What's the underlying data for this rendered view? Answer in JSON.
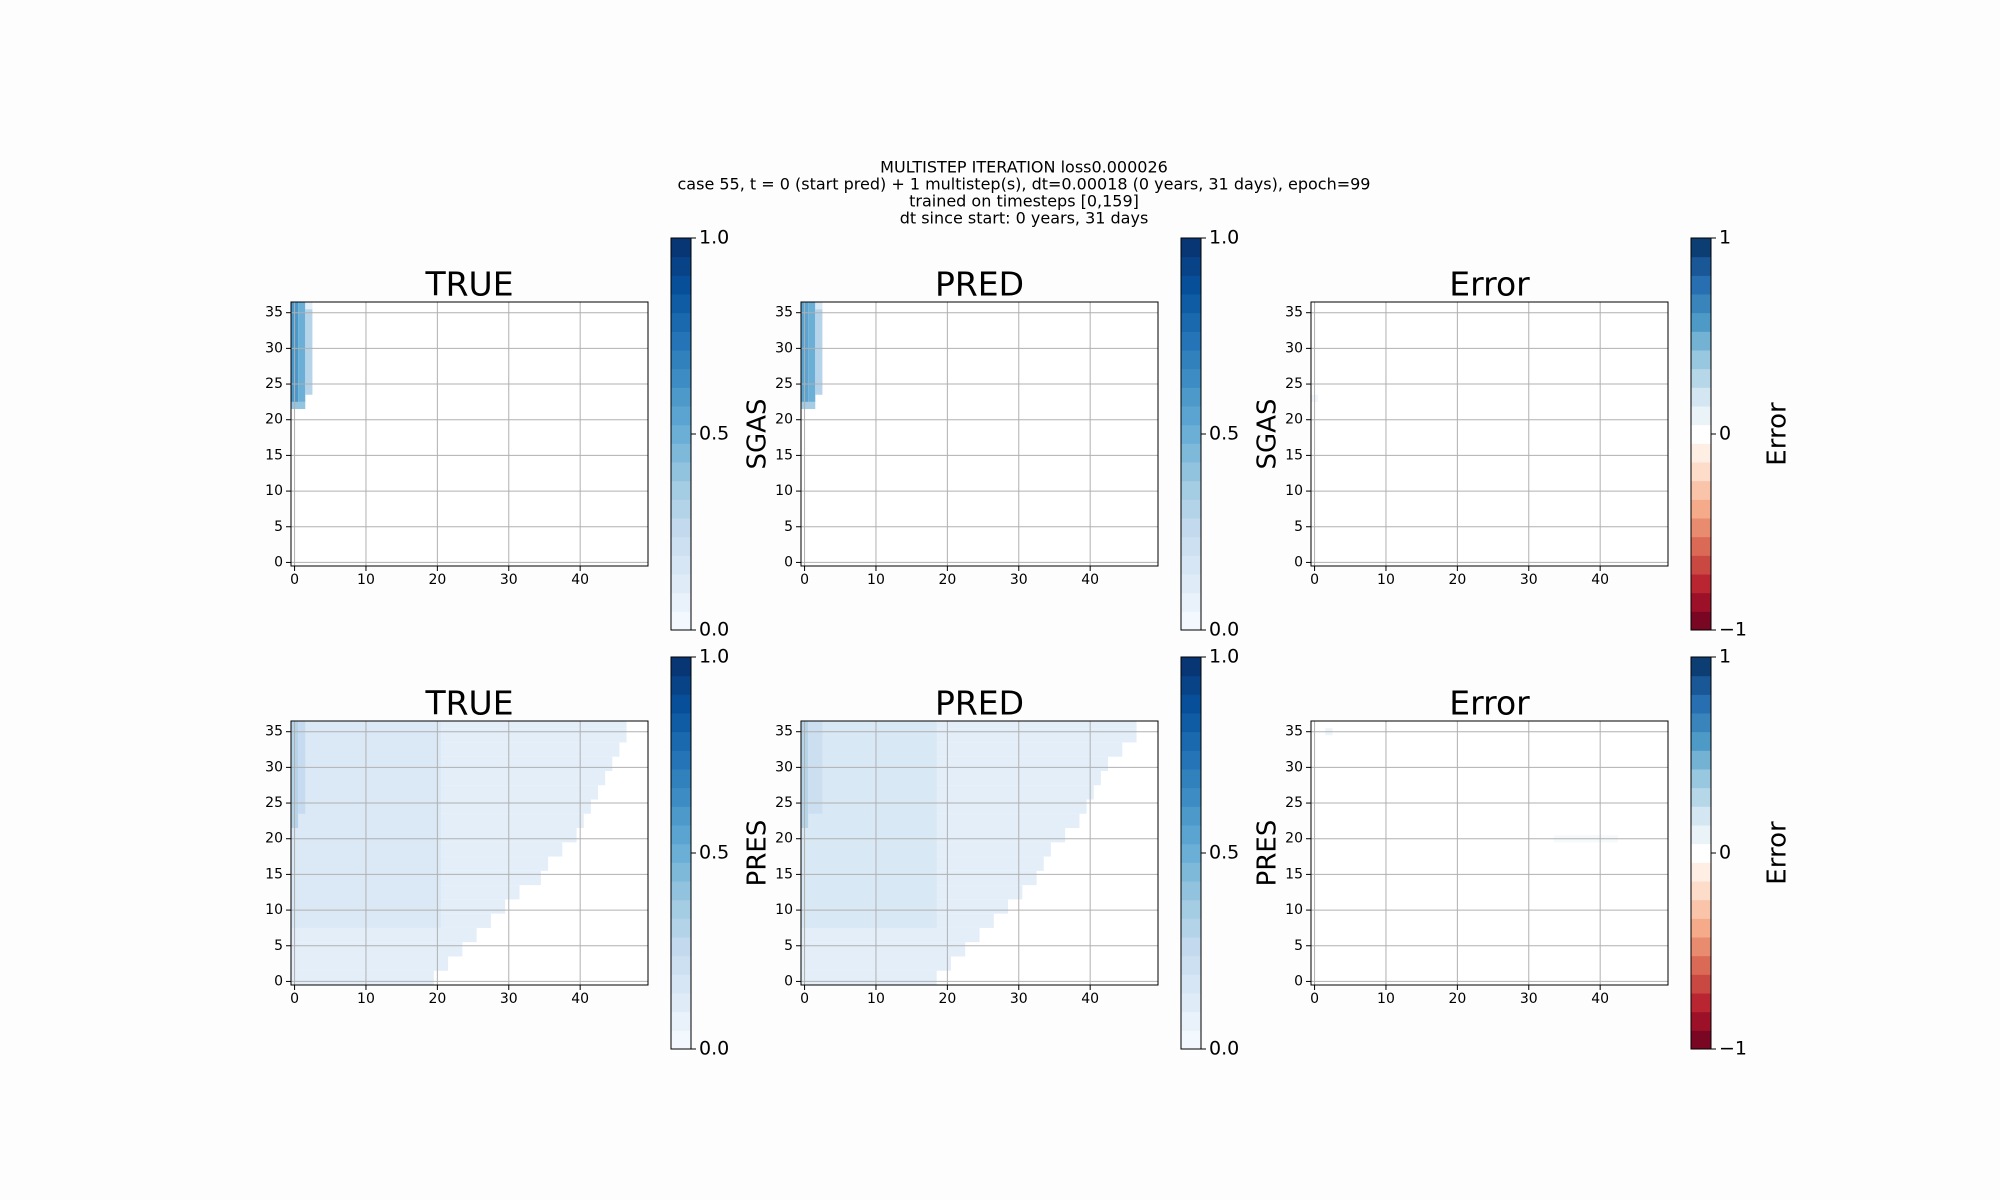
{
  "figure_title": [
    "MULTISTEP ITERATION loss0.000026",
    "case 55, t = 0 (start pred) + 1 multistep(s), dt=0.00018 (0 years, 31 days), epoch=99",
    "trained on timesteps [0,159]",
    "dt since start: 0 years, 31 days"
  ],
  "chart_data": [
    {
      "type": "heatmap",
      "title": "TRUE",
      "xlim": [
        -0.5,
        49.5
      ],
      "ylim": [
        36.5,
        -0.5
      ],
      "xticks": [
        0,
        10,
        20,
        30,
        40
      ],
      "yticks": [
        0,
        5,
        10,
        15,
        20,
        25,
        30,
        35
      ],
      "grid": true,
      "segments": [
        [
          22,
          22,
          0,
          1,
          0.4
        ],
        [
          23,
          36,
          0,
          0,
          0.6
        ],
        [
          23,
          36,
          1,
          1,
          0.5
        ],
        [
          24,
          35,
          2,
          2,
          0.3
        ],
        [
          36,
          36,
          2,
          2,
          0.1
        ]
      ],
      "colorbar": {
        "label": "SGAS",
        "lim": [
          0,
          1
        ],
        "ticks": [
          {
            "value": 0,
            "label": "0.0"
          },
          0.5,
          {
            "value": 1,
            "label": "1.0"
          }
        ],
        "colors": [
          "#f7fbff",
          "#deebf7",
          "#c6dbef",
          "#9ecae1",
          "#6baed6",
          "#4292c6",
          "#2171b5",
          "#08519c",
          "#08306b"
        ]
      }
    },
    {
      "type": "heatmap",
      "title": "PRED",
      "xlim": [
        -0.5,
        49.5
      ],
      "ylim": [
        36.5,
        -0.5
      ],
      "xticks": [
        0,
        10,
        20,
        30,
        40
      ],
      "yticks": [
        0,
        5,
        10,
        15,
        20,
        25,
        30,
        35
      ],
      "grid": true,
      "segments": [
        [
          22,
          22,
          0,
          1,
          0.35
        ],
        [
          23,
          36,
          0,
          0,
          0.55
        ],
        [
          23,
          36,
          1,
          1,
          0.5
        ],
        [
          24,
          35,
          2,
          2,
          0.3
        ],
        [
          36,
          36,
          2,
          2,
          0.15
        ]
      ],
      "colorbar": {
        "label": "SGAS",
        "lim": [
          0,
          1
        ],
        "ticks": [
          {
            "value": 0,
            "label": "0.0"
          },
          0.5,
          {
            "value": 1,
            "label": "1.0"
          }
        ],
        "colors": [
          "#f7fbff",
          "#deebf7",
          "#c6dbef",
          "#9ecae1",
          "#6baed6",
          "#4292c6",
          "#2171b5",
          "#08519c",
          "#08306b"
        ]
      }
    },
    {
      "type": "heatmap",
      "title": "Error",
      "xlim": [
        -0.5,
        49.5
      ],
      "ylim": [
        36.5,
        -0.5
      ],
      "xticks": [
        0,
        10,
        20,
        30,
        40
      ],
      "yticks": [
        0,
        5,
        10,
        15,
        20,
        25,
        30,
        35
      ],
      "grid": true,
      "segments": [
        [
          23,
          23,
          0,
          0,
          0.06
        ]
      ],
      "colorbar": {
        "label": "Error",
        "lim": [
          -1,
          1
        ],
        "ticks": [
          {
            "value": -1,
            "label": "−1"
          },
          0,
          1
        ],
        "colors": [
          "#67001f",
          "#b2182b",
          "#d6604d",
          "#f4a582",
          "#fddbc7",
          "#ffffff",
          "#d1e5f0",
          "#92c5de",
          "#4393c3",
          "#2166ac",
          "#053061"
        ]
      }
    },
    {
      "type": "heatmap",
      "title": "TRUE",
      "xlim": [
        -0.5,
        49.5
      ],
      "ylim": [
        36.5,
        -0.5
      ],
      "xticks": [
        0,
        10,
        20,
        30,
        40
      ],
      "yticks": [
        0,
        5,
        10,
        15,
        20,
        25,
        30,
        35
      ],
      "grid": true,
      "segments": [
        [
          0,
          1,
          0,
          19,
          0.1
        ],
        [
          2,
          3,
          0,
          21,
          0.1
        ],
        [
          4,
          5,
          0,
          23,
          0.1
        ],
        [
          6,
          7,
          0,
          25,
          0.1
        ],
        [
          8,
          9,
          0,
          27,
          0.1
        ],
        [
          10,
          11,
          0,
          29,
          0.1
        ],
        [
          12,
          13,
          0,
          31,
          0.1
        ],
        [
          14,
          15,
          0,
          34,
          0.1
        ],
        [
          16,
          17,
          0,
          35,
          0.1
        ],
        [
          18,
          19,
          0,
          37,
          0.1
        ],
        [
          20,
          21,
          0,
          39,
          0.1
        ],
        [
          22,
          23,
          0,
          40,
          0.1
        ],
        [
          24,
          25,
          0,
          41,
          0.1
        ],
        [
          26,
          27,
          0,
          42,
          0.1
        ],
        [
          28,
          29,
          0,
          43,
          0.1
        ],
        [
          30,
          31,
          0,
          44,
          0.1
        ],
        [
          32,
          33,
          0,
          45,
          0.1
        ],
        [
          34,
          35,
          0,
          46,
          0.1
        ],
        [
          36,
          36,
          0,
          46,
          0.1
        ],
        [
          8,
          36,
          0,
          20,
          0.14
        ],
        [
          22,
          36,
          0,
          0,
          0.3
        ],
        [
          24,
          36,
          1,
          1,
          0.25
        ]
      ],
      "colorbar": {
        "label": "PRES",
        "lim": [
          0,
          1
        ],
        "ticks": [
          {
            "value": 0,
            "label": "0.0"
          },
          0.5,
          {
            "value": 1,
            "label": "1.0"
          }
        ],
        "colors": [
          "#f7fbff",
          "#deebf7",
          "#c6dbef",
          "#9ecae1",
          "#6baed6",
          "#4292c6",
          "#2171b5",
          "#08519c",
          "#08306b"
        ]
      }
    },
    {
      "type": "heatmap",
      "title": "PRED",
      "xlim": [
        -0.5,
        49.5
      ],
      "ylim": [
        36.5,
        -0.5
      ],
      "xticks": [
        0,
        10,
        20,
        30,
        40
      ],
      "yticks": [
        0,
        5,
        10,
        15,
        20,
        25,
        30,
        35
      ],
      "grid": true,
      "segments": [
        [
          0,
          1,
          0,
          18,
          0.1
        ],
        [
          2,
          3,
          0,
          20,
          0.1
        ],
        [
          4,
          5,
          0,
          22,
          0.1
        ],
        [
          6,
          7,
          0,
          24,
          0.1
        ],
        [
          8,
          9,
          0,
          26,
          0.1
        ],
        [
          10,
          11,
          0,
          28,
          0.1
        ],
        [
          12,
          13,
          0,
          30,
          0.1
        ],
        [
          14,
          15,
          0,
          32,
          0.1
        ],
        [
          16,
          17,
          0,
          33,
          0.1
        ],
        [
          18,
          19,
          0,
          34,
          0.1
        ],
        [
          20,
          21,
          0,
          36,
          0.1
        ],
        [
          22,
          23,
          0,
          38,
          0.1
        ],
        [
          24,
          25,
          0,
          39,
          0.1
        ],
        [
          26,
          27,
          0,
          40,
          0.1
        ],
        [
          28,
          29,
          0,
          41,
          0.1
        ],
        [
          30,
          31,
          0,
          42,
          0.1
        ],
        [
          32,
          33,
          0,
          44,
          0.1
        ],
        [
          34,
          35,
          0,
          46,
          0.1
        ],
        [
          36,
          36,
          0,
          46,
          0.1
        ],
        [
          8,
          36,
          0,
          18,
          0.15
        ],
        [
          22,
          36,
          0,
          0,
          0.3
        ],
        [
          24,
          36,
          1,
          2,
          0.22
        ]
      ],
      "colorbar": {
        "label": "PRES",
        "lim": [
          0,
          1
        ],
        "ticks": [
          {
            "value": 0,
            "label": "0.0"
          },
          0.5,
          {
            "value": 1,
            "label": "1.0"
          }
        ],
        "colors": [
          "#f7fbff",
          "#deebf7",
          "#c6dbef",
          "#9ecae1",
          "#6baed6",
          "#4292c6",
          "#2171b5",
          "#08519c",
          "#08306b"
        ]
      }
    },
    {
      "type": "heatmap",
      "title": "Error",
      "xlim": [
        -0.5,
        49.5
      ],
      "ylim": [
        36.5,
        -0.5
      ],
      "xticks": [
        0,
        10,
        20,
        30,
        40
      ],
      "yticks": [
        0,
        5,
        10,
        15,
        20,
        25,
        30,
        35
      ],
      "grid": true,
      "segments": [
        [
          35,
          35,
          2,
          2,
          0.08
        ],
        [
          20,
          20,
          34,
          42,
          0.04
        ]
      ],
      "colorbar": {
        "label": "Error",
        "lim": [
          -1,
          1
        ],
        "ticks": [
          {
            "value": -1,
            "label": "−1"
          },
          0,
          1
        ],
        "colors": [
          "#67001f",
          "#b2182b",
          "#d6604d",
          "#f4a582",
          "#fddbc7",
          "#ffffff",
          "#d1e5f0",
          "#92c5de",
          "#4393c3",
          "#2166ac",
          "#053061"
        ]
      }
    }
  ]
}
